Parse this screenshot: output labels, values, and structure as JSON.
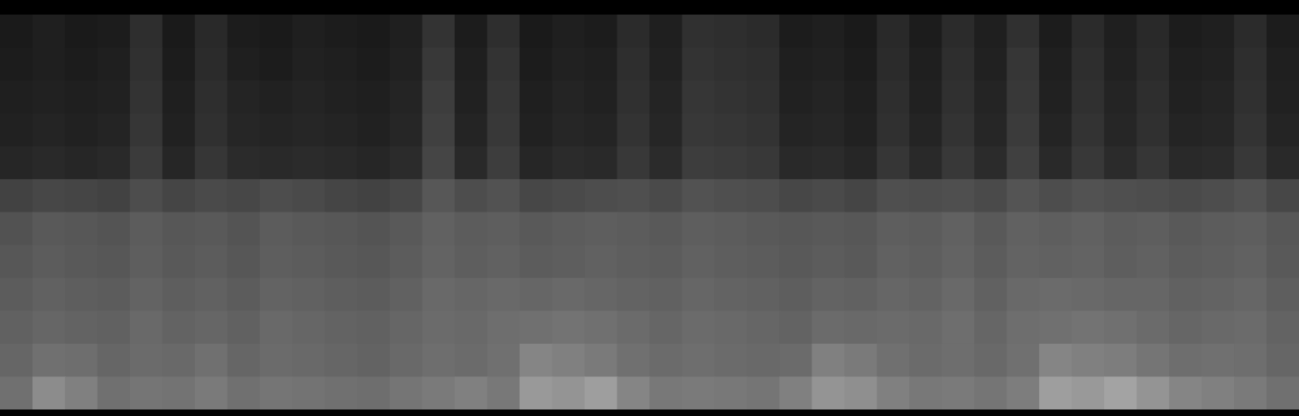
{
  "chart_data": {
    "type": "heatmap",
    "tick_labels": false,
    "zlim": [
      0,
      100
    ],
    "cells": [
      [
        10,
        12,
        10,
        11,
        18,
        10,
        16,
        11,
        10,
        12,
        11,
        10,
        12,
        20,
        11,
        18,
        10,
        12,
        11,
        17,
        12,
        19,
        18,
        17,
        11,
        12,
        10,
        16,
        11,
        17,
        12,
        19,
        11,
        17,
        12,
        16,
        11,
        12,
        17,
        11
      ],
      [
        11,
        12,
        11,
        12,
        19,
        11,
        17,
        12,
        11,
        13,
        12,
        11,
        13,
        22,
        12,
        20,
        11,
        13,
        12,
        18,
        13,
        20,
        19,
        18,
        12,
        13,
        11,
        17,
        12,
        18,
        13,
        21,
        12,
        18,
        13,
        17,
        12,
        13,
        18,
        12
      ],
      [
        12,
        13,
        12,
        13,
        20,
        12,
        18,
        14,
        13,
        14,
        13,
        12,
        14,
        24,
        13,
        21,
        12,
        14,
        13,
        19,
        14,
        21,
        20,
        19,
        13,
        14,
        12,
        18,
        13,
        19,
        14,
        22,
        13,
        19,
        14,
        18,
        13,
        14,
        19,
        13
      ],
      [
        13,
        14,
        13,
        14,
        21,
        13,
        19,
        15,
        14,
        15,
        14,
        13,
        15,
        25,
        14,
        22,
        13,
        15,
        14,
        20,
        15,
        22,
        21,
        20,
        14,
        15,
        13,
        19,
        14,
        20,
        15,
        23,
        14,
        20,
        15,
        19,
        14,
        15,
        20,
        14
      ],
      [
        15,
        16,
        15,
        16,
        23,
        15,
        21,
        17,
        16,
        17,
        16,
        15,
        17,
        27,
        16,
        24,
        15,
        17,
        16,
        22,
        17,
        24,
        23,
        22,
        16,
        17,
        15,
        21,
        16,
        22,
        17,
        25,
        16,
        22,
        17,
        21,
        16,
        17,
        22,
        16
      ],
      [
        26,
        28,
        27,
        26,
        30,
        27,
        29,
        28,
        30,
        29,
        27,
        26,
        28,
        34,
        30,
        32,
        28,
        29,
        30,
        31,
        29,
        32,
        31,
        30,
        28,
        29,
        27,
        31,
        30,
        31,
        29,
        33,
        30,
        32,
        31,
        30,
        29,
        30,
        32,
        28
      ],
      [
        32,
        35,
        34,
        33,
        36,
        34,
        35,
        33,
        36,
        35,
        34,
        33,
        35,
        38,
        36,
        37,
        35,
        36,
        37,
        36,
        35,
        37,
        36,
        35,
        34,
        35,
        34,
        37,
        36,
        38,
        35,
        38,
        37,
        38,
        36,
        37,
        35,
        36,
        37,
        34
      ],
      [
        34,
        36,
        35,
        34,
        37,
        35,
        36,
        34,
        37,
        36,
        35,
        34,
        36,
        39,
        37,
        38,
        36,
        37,
        38,
        37,
        36,
        38,
        37,
        36,
        35,
        36,
        35,
        38,
        37,
        39,
        36,
        39,
        38,
        39,
        37,
        38,
        36,
        37,
        38,
        35
      ],
      [
        36,
        38,
        37,
        36,
        39,
        37,
        38,
        36,
        39,
        38,
        37,
        36,
        38,
        41,
        40,
        41,
        40,
        41,
        40,
        39,
        38,
        40,
        39,
        38,
        37,
        39,
        38,
        40,
        39,
        41,
        38,
        41,
        42,
        41,
        40,
        40,
        38,
        39,
        40,
        37
      ],
      [
        38,
        40,
        39,
        38,
        41,
        39,
        40,
        38,
        41,
        40,
        39,
        38,
        40,
        42,
        41,
        43,
        44,
        45,
        44,
        42,
        40,
        42,
        41,
        40,
        39,
        42,
        41,
        42,
        41,
        43,
        40,
        43,
        44,
        45,
        44,
        42,
        40,
        41,
        42,
        39
      ],
      [
        40,
        44,
        43,
        40,
        42,
        41,
        44,
        40,
        42,
        41,
        40,
        39,
        41,
        43,
        42,
        44,
        52,
        50,
        48,
        44,
        42,
        43,
        42,
        41,
        42,
        50,
        48,
        44,
        42,
        43,
        41,
        44,
        52,
        50,
        49,
        46,
        43,
        44,
        43,
        40
      ],
      [
        44,
        55,
        50,
        44,
        46,
        45,
        48,
        44,
        46,
        45,
        44,
        43,
        46,
        48,
        50,
        47,
        60,
        58,
        62,
        52,
        47,
        48,
        47,
        46,
        50,
        58,
        56,
        50,
        47,
        48,
        46,
        49,
        62,
        60,
        64,
        58,
        52,
        50,
        48,
        44
      ]
    ]
  }
}
